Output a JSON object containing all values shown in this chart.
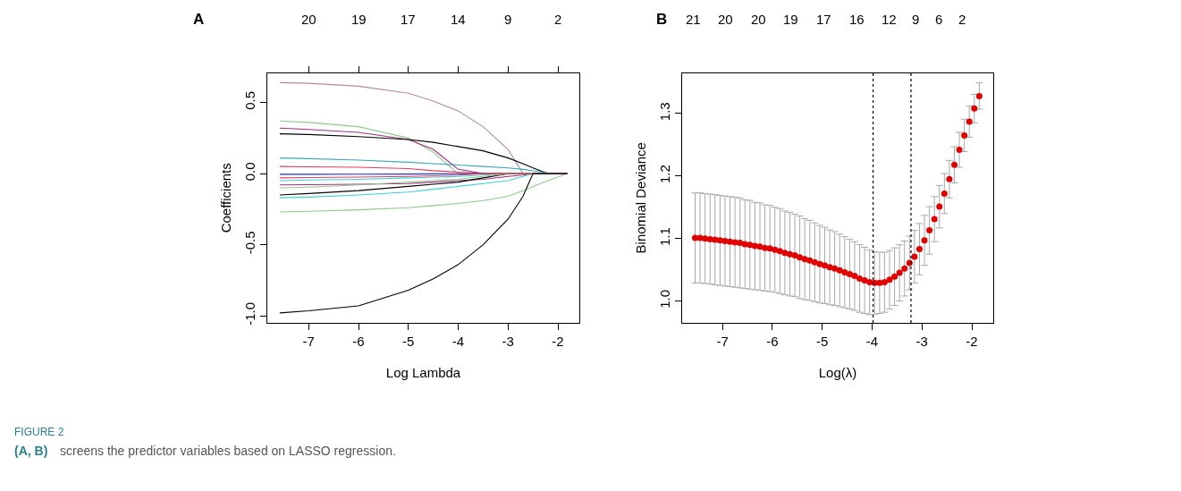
{
  "chart_data": [
    {
      "type": "line",
      "title": "A",
      "xlabel": "Log Lambda",
      "ylabel": "Coefficients",
      "x": [
        -7.58,
        -7,
        -6,
        -5,
        -4.5,
        -4,
        -3.5,
        -3,
        -2.7,
        -2.5,
        -2.2,
        -1.81
      ],
      "series": [
        {
          "color": "#b08aa8",
          "values": [
            0.64,
            0.635,
            0.615,
            0.565,
            0.51,
            0.44,
            0.33,
            0.17,
            0,
            0,
            0,
            0
          ]
        },
        {
          "color": "#90c890",
          "values": [
            0.37,
            0.36,
            0.33,
            0.25,
            0.15,
            0,
            0,
            0,
            0,
            0,
            0,
            0
          ]
        },
        {
          "color": "#a0307a",
          "values": [
            0.32,
            0.31,
            0.29,
            0.24,
            0.17,
            0.03,
            0,
            0,
            0,
            0,
            0,
            0
          ]
        },
        {
          "color": "#000000",
          "values": [
            0.28,
            0.275,
            0.26,
            0.24,
            0.22,
            0.19,
            0.16,
            0.11,
            0.07,
            0.04,
            0,
            0
          ]
        },
        {
          "color": "#3aa8b8",
          "values": [
            0.11,
            0.105,
            0.095,
            0.08,
            0.07,
            0.06,
            0.05,
            0.04,
            0.03,
            0.02,
            0.005,
            0
          ]
        },
        {
          "color": "#e04060",
          "values": [
            0.05,
            0.048,
            0.045,
            0.035,
            0.02,
            0.01,
            0,
            0,
            0,
            0,
            0,
            0
          ]
        },
        {
          "color": "#2030c0",
          "values": [
            -0.005,
            -0.005,
            -0.004,
            -0.003,
            -0.002,
            -0.001,
            0,
            null,
            null,
            null,
            null,
            null
          ]
        },
        {
          "color": "#40d0d8",
          "values": [
            -0.05,
            -0.045,
            -0.04,
            -0.03,
            -0.025,
            -0.02,
            -0.01,
            0,
            0,
            0,
            0,
            0
          ]
        },
        {
          "color": "#a0307a",
          "values": [
            -0.08,
            -0.078,
            -0.075,
            -0.07,
            -0.06,
            -0.05,
            -0.04,
            -0.02,
            -0.01,
            0,
            0,
            0
          ]
        },
        {
          "color": "#000000",
          "values": [
            -0.15,
            -0.14,
            -0.12,
            -0.09,
            -0.075,
            -0.06,
            -0.03,
            0,
            0,
            0,
            0,
            0
          ]
        },
        {
          "color": "#40d0d8",
          "values": [
            -0.17,
            -0.165,
            -0.15,
            -0.13,
            -0.11,
            -0.09,
            -0.07,
            -0.05,
            -0.02,
            0,
            0,
            0
          ]
        },
        {
          "color": "#90c890",
          "values": [
            -0.27,
            -0.265,
            -0.255,
            -0.24,
            -0.225,
            -0.21,
            -0.19,
            -0.16,
            -0.12,
            -0.09,
            -0.05,
            0
          ]
        },
        {
          "color": "#90c890",
          "values": [
            -0.1,
            -0.095,
            -0.08,
            -0.06,
            -0.05,
            -0.04,
            -0.02,
            0,
            0,
            0,
            0,
            0
          ]
        },
        {
          "color": "#e04060",
          "values": [
            -0.03,
            -0.028,
            -0.025,
            -0.02,
            -0.015,
            -0.01,
            0,
            0,
            0,
            0,
            0,
            0
          ]
        },
        {
          "color": "#000000",
          "values": [
            -0.98,
            -0.965,
            -0.93,
            -0.82,
            -0.74,
            -0.64,
            -0.5,
            -0.32,
            -0.16,
            0,
            0,
            0
          ]
        }
      ],
      "xlim": [
        -7.83,
        -1.57
      ],
      "ylim": [
        -1.05,
        0.708
      ],
      "xticks": [
        -7,
        -6,
        -5,
        -4,
        -3,
        -2
      ],
      "yticks": [
        {
          "value": -1,
          "label": "-1.0"
        },
        {
          "value": -0.5,
          "label": "-0.5"
        },
        {
          "value": 0,
          "label": "0.0"
        },
        {
          "value": 0.5,
          "label": "0.5"
        }
      ],
      "line_style": "solid",
      "annotations": [
        "20",
        "19",
        "17",
        "14",
        "9",
        "2",
        "FIGURE 2",
        "(A, B)",
        "screens the predictor variables based on LASSO regression."
      ]
    },
    {
      "type": "scatter",
      "title": "B",
      "xlabel": "Log(λ)",
      "ylabel": "Binomial Deviance",
      "color": "#e00000",
      "marker": "circle",
      "x": [
        -7.55,
        -7.45,
        -7.35,
        -7.25,
        -7.15,
        -7.05,
        -6.95,
        -6.85,
        -6.75,
        -6.65,
        -6.55,
        -6.45,
        -6.35,
        -6.25,
        -6.15,
        -6.05,
        -5.95,
        -5.85,
        -5.75,
        -5.65,
        -5.55,
        -5.45,
        -5.35,
        -5.25,
        -5.15,
        -5.05,
        -4.95,
        -4.85,
        -4.75,
        -4.65,
        -4.55,
        -4.45,
        -4.35,
        -4.25,
        -4.15,
        -4.05,
        -3.95,
        -3.85,
        -3.75,
        -3.65,
        -3.55,
        -3.45,
        -3.35,
        -3.25,
        -3.15,
        -3.05,
        -2.95,
        -2.85,
        -2.75,
        -2.65,
        -2.55,
        -2.45,
        -2.35,
        -2.25,
        -2.15,
        -2.05,
        -1.95,
        -1.85
      ],
      "values": [
        1.101,
        1.101,
        1.1,
        1.099,
        1.098,
        1.097,
        1.096,
        1.095,
        1.094,
        1.093,
        1.091,
        1.09,
        1.088,
        1.087,
        1.085,
        1.084,
        1.082,
        1.08,
        1.077,
        1.075,
        1.073,
        1.07,
        1.067,
        1.065,
        1.062,
        1.059,
        1.057,
        1.054,
        1.052,
        1.049,
        1.046,
        1.043,
        1.04,
        1.036,
        1.033,
        1.03,
        1.029,
        1.029,
        1.03,
        1.034,
        1.039,
        1.045,
        1.052,
        1.061,
        1.071,
        1.083,
        1.097,
        1.113,
        1.131,
        1.151,
        1.172,
        1.195,
        1.218,
        1.242,
        1.265,
        1.287,
        1.308,
        1.328
      ],
      "errors": [
        0.072,
        0.072,
        0.072,
        0.072,
        0.072,
        0.072,
        0.072,
        0.072,
        0.072,
        0.072,
        0.071,
        0.071,
        0.07,
        0.07,
        0.069,
        0.069,
        0.068,
        0.068,
        0.067,
        0.067,
        0.066,
        0.066,
        0.065,
        0.064,
        0.063,
        0.062,
        0.061,
        0.06,
        0.059,
        0.058,
        0.057,
        0.056,
        0.055,
        0.054,
        0.053,
        0.052,
        0.05,
        0.049,
        0.048,
        0.047,
        0.046,
        0.045,
        0.044,
        0.043,
        0.042,
        0.041,
        0.04,
        0.038,
        0.036,
        0.034,
        0.032,
        0.03,
        0.029,
        0.028,
        0.026,
        0.025,
        0.023,
        0.021
      ],
      "xlim": [
        -7.81,
        -1.57
      ],
      "ylim": [
        0.965,
        1.365
      ],
      "xticks": [
        -7,
        -6,
        -5,
        -4,
        -3,
        -2
      ],
      "yticks": [
        {
          "value": 1,
          "label": "1.0"
        },
        {
          "value": 1.1,
          "label": "1.1"
        },
        {
          "value": 1.2,
          "label": "1.2"
        },
        {
          "value": 1.3,
          "label": "1.3"
        }
      ],
      "annotations": [
        "21",
        "20",
        "20",
        "19",
        "17",
        "16",
        "12",
        "9",
        "6",
        "2"
      ],
      "ref_lines": [
        {
          "axis": "x",
          "value": -3.98,
          "color": "#000000",
          "line_style": "dotted"
        },
        {
          "axis": "x",
          "value": -3.22,
          "color": "#000000",
          "line_style": "dotted"
        }
      ]
    }
  ]
}
